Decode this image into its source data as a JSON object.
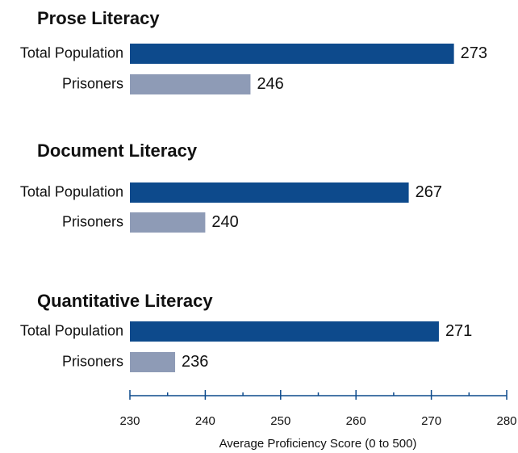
{
  "chart_data": {
    "type": "bar",
    "orientation": "horizontal",
    "categories": [
      "Total Population",
      "Prisoners"
    ],
    "colors": [
      "#0d4a8c",
      "#8e9bb6"
    ],
    "panels": [
      {
        "title": "Prose Literacy",
        "values": [
          273,
          246
        ]
      },
      {
        "title": "Document Literacy",
        "values": [
          267,
          240
        ]
      },
      {
        "title": "Quantitative Literacy",
        "values": [
          271,
          236
        ]
      }
    ],
    "xlabel": "Average Proficiency Score (0 to 500)",
    "xlim": [
      230,
      280
    ],
    "xticks": [
      230,
      240,
      250,
      260,
      270,
      280
    ],
    "xminorticks": [
      235,
      245,
      255,
      265,
      275
    ]
  }
}
